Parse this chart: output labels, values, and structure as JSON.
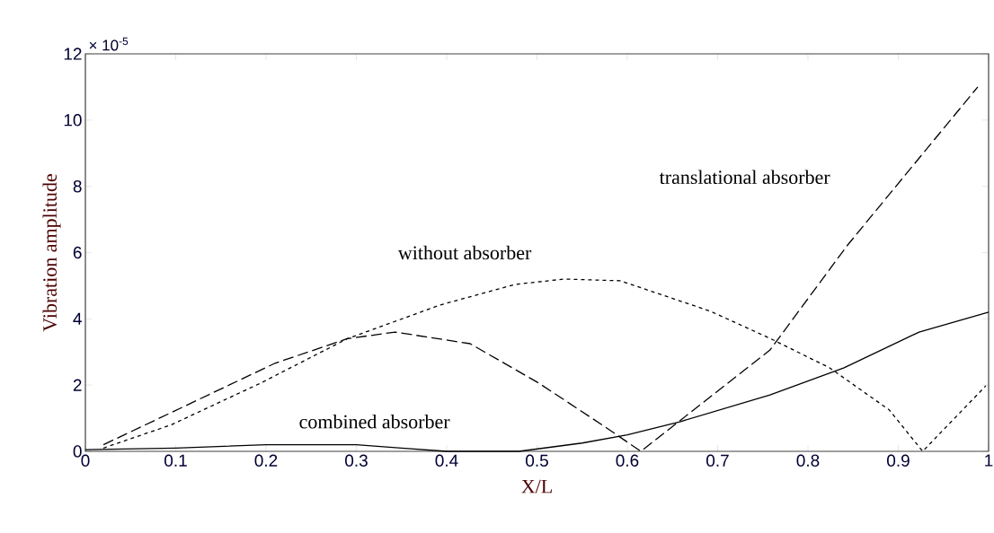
{
  "chart_data": {
    "type": "line",
    "xlabel": "X/L",
    "ylabel": "Vibration amplitude",
    "xlim": [
      0,
      1
    ],
    "ylim": [
      0,
      12
    ],
    "xticks": [
      0,
      0.1,
      0.2,
      0.3,
      0.4,
      0.5,
      0.6,
      0.7,
      0.8,
      0.9,
      1
    ],
    "yticks": [
      0,
      2,
      4,
      6,
      8,
      10,
      12
    ],
    "grid": false,
    "annotations": [
      "× 10$^{-5}$",
      "without absorber",
      "translational absorber",
      "combined absorber"
    ],
    "series": [
      {
        "color": "#000000",
        "line_style": "dotted",
        "x": [
          0.02,
          0.095,
          0.194,
          0.29,
          0.393,
          0.476,
          0.53,
          0.592,
          0.692,
          0.758,
          0.824,
          0.89,
          0.927,
          0.997
        ],
        "values": [
          0.1,
          0.8,
          2.06,
          3.4,
          4.42,
          5.04,
          5.2,
          5.15,
          4.23,
          3.41,
          2.52,
          1.25,
          0.0,
          1.98
        ]
      },
      {
        "color": "#000000",
        "line_style": "dashed",
        "x": [
          0.02,
          0.095,
          0.21,
          0.29,
          0.343,
          0.426,
          0.502,
          0.572,
          0.615,
          0.758,
          0.844,
          0.92,
          0.988
        ],
        "values": [
          0.2,
          1.17,
          2.66,
          3.4,
          3.6,
          3.25,
          2.06,
          0.8,
          0.0,
          3.06,
          6.23,
          8.75,
          11.0
        ]
      },
      {
        "color": "#000000",
        "line_style": "solid",
        "x": [
          0.0,
          0.1,
          0.2,
          0.3,
          0.35,
          0.4,
          0.48,
          0.55,
          0.6,
          0.659,
          0.758,
          0.84,
          0.923,
          1.0
        ],
        "values": [
          0.05,
          0.1,
          0.2,
          0.2,
          0.1,
          0.0,
          0.0,
          0.25,
          0.5,
          0.9,
          1.7,
          2.52,
          3.6,
          4.2
        ]
      }
    ]
  }
}
